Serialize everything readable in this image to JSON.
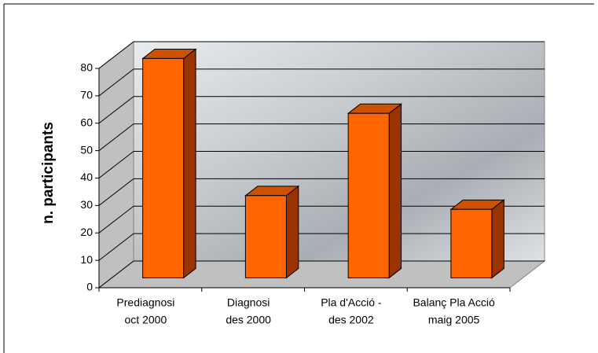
{
  "chart_data": {
    "type": "bar3d",
    "y_label": "n. participants",
    "categories": [
      [
        "Prediagnosi",
        "oct 2000"
      ],
      [
        "Diagnosi",
        "des  2000"
      ],
      [
        "Pla d'Acció -",
        "des 2002"
      ],
      [
        "Balanç Pla   Acció",
        "maig 2005"
      ]
    ],
    "values": [
      80,
      30,
      60,
      25
    ],
    "color": "#ff6600",
    "ylim": [
      0,
      80
    ],
    "yticks": [
      0,
      10,
      20,
      30,
      40,
      50,
      60,
      70,
      80
    ],
    "grid": true
  }
}
